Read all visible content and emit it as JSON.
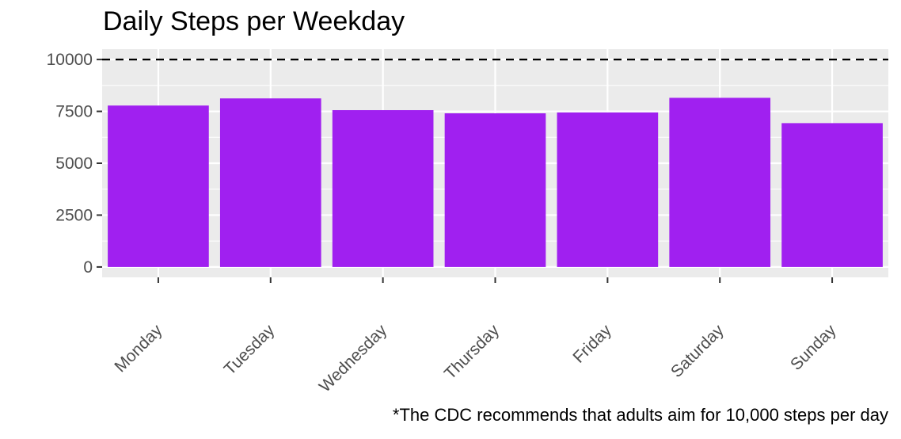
{
  "chart_data": {
    "type": "bar",
    "title": "Daily Steps per Weekday",
    "caption": "*The CDC recommends that adults aim for 10,000 steps per day",
    "xlabel": "",
    "ylabel": "",
    "categories": [
      "Monday",
      "Tuesday",
      "Wednesday",
      "Thursday",
      "Friday",
      "Saturday",
      "Sunday"
    ],
    "values": [
      7781,
      8125,
      7559,
      7406,
      7448,
      8153,
      6933
    ],
    "ylim": [
      -500,
      10500
    ],
    "y_ticks": [
      0,
      2500,
      5000,
      7500,
      10000
    ],
    "y_tick_labels": [
      "0",
      "2500",
      "5000",
      "7500",
      "10000"
    ],
    "reference_line": {
      "value": 10000,
      "style": "dashed",
      "color": "#000000"
    },
    "bar_color": "#a020f0",
    "panel_background": "#ebebeb",
    "grid_color": "#ffffff",
    "grid": true,
    "legend": "none"
  }
}
